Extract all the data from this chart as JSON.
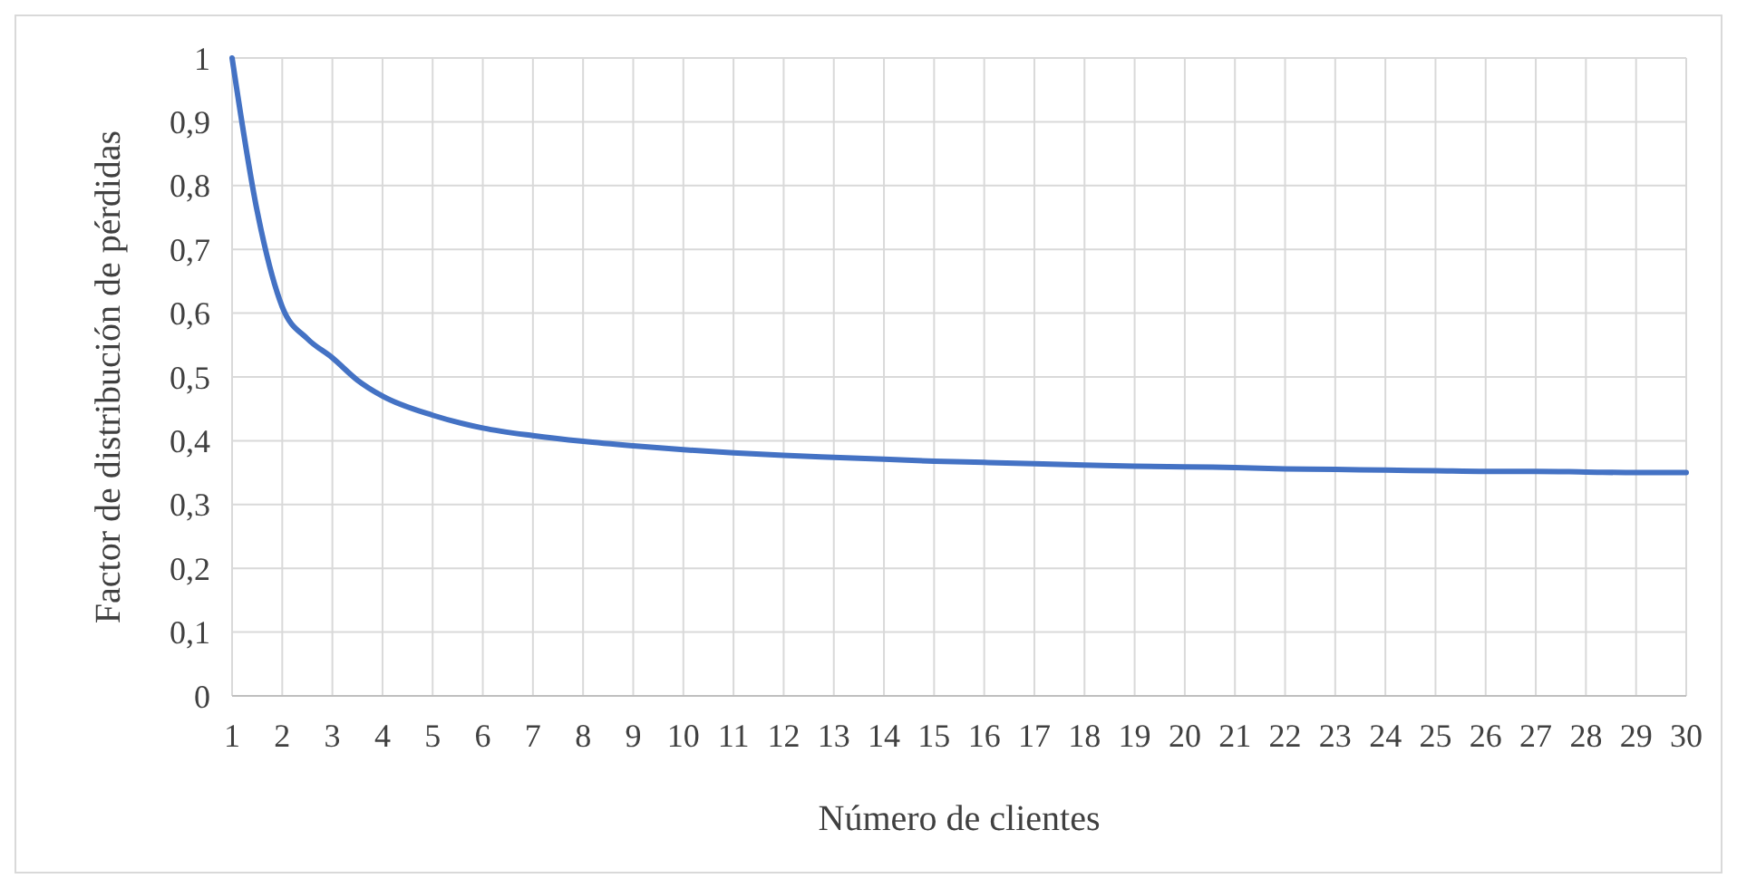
{
  "chart_data": {
    "type": "line",
    "xlabel": "Número de clientes",
    "ylabel": "Factor de distribución de pérdidas",
    "x": [
      1,
      1.5,
      2,
      2.5,
      3,
      3.5,
      4,
      5,
      6,
      7,
      8,
      9,
      10,
      11,
      12,
      13,
      14,
      15,
      16,
      17,
      18,
      19,
      20,
      21,
      22,
      23,
      24,
      25,
      26,
      27,
      28,
      29,
      30
    ],
    "series": [
      {
        "color": "#4472c4",
        "values": [
          1,
          0.76,
          0.61,
          0.56,
          0.53,
          0.495,
          0.47,
          0.44,
          0.42,
          0.408,
          0.399,
          0.392,
          0.386,
          0.381,
          0.377,
          0.374,
          0.371,
          0.368,
          0.366,
          0.364,
          0.362,
          0.36,
          0.359,
          0.358,
          0.356,
          0.355,
          0.354,
          0.353,
          0.352,
          0.352,
          0.351,
          0.35,
          0.35
        ]
      }
    ],
    "xlim": [
      1,
      30
    ],
    "xticks": [
      1,
      2,
      3,
      4,
      5,
      6,
      7,
      8,
      9,
      10,
      11,
      12,
      13,
      14,
      15,
      16,
      17,
      18,
      19,
      20,
      21,
      22,
      23,
      24,
      25,
      26,
      27,
      28,
      29,
      30
    ],
    "ylim": [
      0,
      1
    ],
    "yticks": [
      0,
      {
        "value": 0.1,
        "label": "0,1"
      },
      {
        "value": 0.2,
        "label": "0,2"
      },
      {
        "value": 0.3,
        "label": "0,3"
      },
      {
        "value": 0.4,
        "label": "0,4"
      },
      {
        "value": 0.5,
        "label": "0,5"
      },
      {
        "value": 0.6,
        "label": "0,6"
      },
      {
        "value": 0.7,
        "label": "0,7"
      },
      {
        "value": 0.8,
        "label": "0,8"
      },
      {
        "value": 0.9,
        "label": "0,9"
      },
      1
    ],
    "grid": true,
    "marker": "none",
    "line_style": "solid"
  }
}
